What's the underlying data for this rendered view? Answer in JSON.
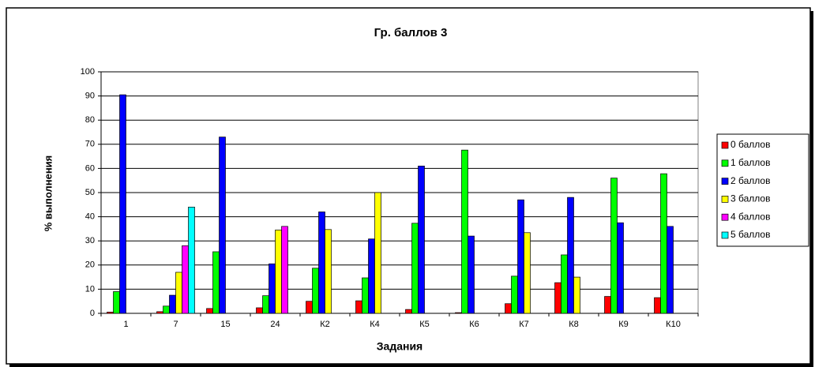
{
  "chart_data": {
    "type": "bar",
    "title": "Гр. баллов 3",
    "x_label": "Задания",
    "y_label": "% выполнения",
    "categories": [
      "1",
      "7",
      "15",
      "24",
      "К2",
      "К4",
      "К5",
      "К6",
      "К7",
      "К8",
      "К9",
      "К10"
    ],
    "series": [
      {
        "name": "0 баллов",
        "color": "#ff0000",
        "values": [
          0.5,
          0.7,
          2,
          2.3,
          5,
          5.2,
          1.6,
          0.3,
          4,
          12.7,
          7,
          6.5
        ]
      },
      {
        "name": "1 баллов",
        "color": "#00ff00",
        "values": [
          9,
          3,
          25.5,
          7.3,
          18.7,
          14.7,
          37.3,
          67.6,
          15.4,
          24.2,
          56,
          57.8
        ]
      },
      {
        "name": "2 баллов",
        "color": "#0000ff",
        "values": [
          90.5,
          7.5,
          73,
          20.5,
          42,
          30.8,
          61,
          32,
          47,
          48,
          37.5,
          36
        ]
      },
      {
        "name": "3 баллов",
        "color": "#ffff00",
        "values": [
          0,
          17,
          0,
          34.5,
          34.7,
          50,
          0,
          0,
          33.4,
          15,
          0,
          0
        ]
      },
      {
        "name": "4 баллов",
        "color": "#ff00ff",
        "values": [
          0,
          28,
          0,
          36,
          0,
          0,
          0,
          0,
          0,
          0,
          0,
          0
        ]
      },
      {
        "name": "5 баллов",
        "color": "#00ffff",
        "values": [
          0,
          44,
          0,
          0,
          0,
          0,
          0,
          0,
          0,
          0,
          0,
          0
        ]
      }
    ],
    "ylim": [
      0,
      100
    ],
    "yticks": [
      0,
      10,
      20,
      30,
      40,
      50,
      60,
      70,
      80,
      90,
      100
    ],
    "grid": true,
    "legend": "right"
  }
}
